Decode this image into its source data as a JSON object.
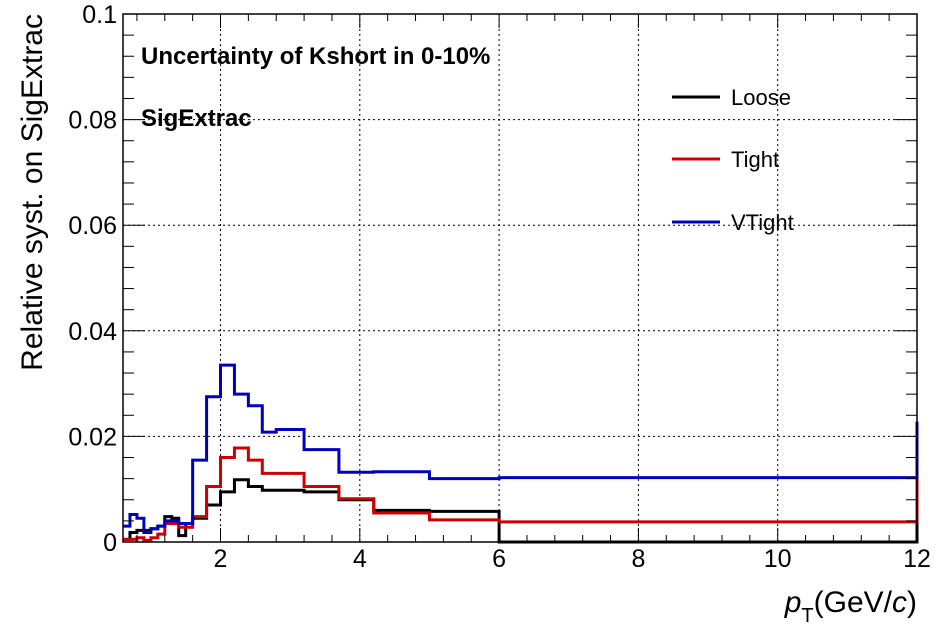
{
  "chart_data": {
    "type": "line",
    "title": "Uncertainty of Kshort in 0-10%",
    "subtitle": "SigExtrac",
    "xlabel": "p_T(GeV/c)",
    "ylabel": "Relative syst. on SigExtrac",
    "xlim": [
      0.6,
      12
    ],
    "ylim": [
      0,
      0.1
    ],
    "xticks": [
      "2",
      "4",
      "6",
      "8",
      "10",
      "12"
    ],
    "yticks": [
      "0",
      "0.02",
      "0.04",
      "0.06",
      "0.08",
      "0.1"
    ],
    "grid": true,
    "legend_position": "top-right",
    "bin_edges": [
      0.6,
      0.7,
      0.8,
      0.9,
      1.0,
      1.1,
      1.2,
      1.3,
      1.4,
      1.5,
      1.6,
      1.8,
      2.0,
      2.2,
      2.4,
      2.6,
      2.8,
      3.2,
      3.7,
      4.2,
      5.0,
      6.0,
      8.0,
      12.0
    ],
    "series": [
      {
        "name": "Loose",
        "color": "#000000",
        "values": [
          0.0005,
          0.0018,
          0.0022,
          0.0022,
          0.0025,
          0.003,
          0.0048,
          0.0045,
          0.0012,
          0.0035,
          0.0045,
          0.007,
          0.0095,
          0.0118,
          0.0105,
          0.0098,
          0.0098,
          0.0095,
          0.008,
          0.006,
          0.0058,
          0.0,
          0.0,
          0.0185
        ]
      },
      {
        "name": "Tight",
        "color": "#cc0000",
        "values": [
          0.0005,
          0.0005,
          0.0008,
          0.0003,
          0.0008,
          0.0015,
          0.0035,
          0.0035,
          0.0028,
          0.0028,
          0.0048,
          0.0105,
          0.016,
          0.0178,
          0.0155,
          0.013,
          0.013,
          0.0105,
          0.0082,
          0.0055,
          0.0042,
          0.0038,
          0.0038,
          0.0128
        ]
      },
      {
        "name": "VTight",
        "color": "#0000bb",
        "values": [
          0.003,
          0.0052,
          0.0045,
          0.0018,
          0.0025,
          0.003,
          0.004,
          0.004,
          0.0035,
          0.0035,
          0.0155,
          0.0275,
          0.0335,
          0.028,
          0.0258,
          0.0208,
          0.0213,
          0.0175,
          0.0132,
          0.0133,
          0.012,
          0.0122,
          0.0122,
          0.0228
        ]
      }
    ]
  }
}
